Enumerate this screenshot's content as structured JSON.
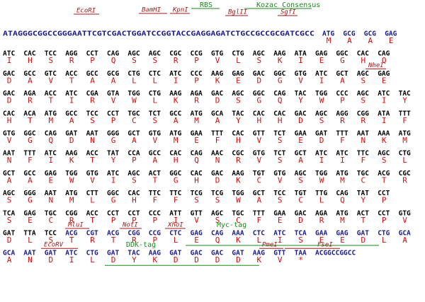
{
  "sequence": {
    "leader": "ATAGGGCGGCCGGGAATTCGTCGACTGGATCCGGTACCGAGGAGATCTGCCGCCGCGATCGCC",
    "rows": [
      {
        "codons": [
          "ATG",
          "GCG",
          "GCG",
          "GAG"
        ],
        "aa": [
          "M",
          "A",
          "A",
          "E"
        ]
      },
      {
        "codons": [
          "ATC",
          "CAC",
          "TCC",
          "AGG",
          "CCT",
          "CAG",
          "AGC",
          "AGC",
          "CGC",
          "CCG",
          "GTG",
          "CTG",
          "AGC",
          "AAG",
          "ATA",
          "GAG",
          "GGC",
          "CAC",
          "CAG"
        ],
        "aa": [
          "I",
          "H",
          "S",
          "R",
          "P",
          "Q",
          "S",
          "S",
          "R",
          "P",
          "V",
          "L",
          "S",
          "K",
          "I",
          "E",
          "G",
          "H",
          "Q"
        ]
      },
      {
        "codons": [
          "GAC",
          "GCC",
          "GTC",
          "ACC",
          "GCC",
          "GCG",
          "CTG",
          "CTC",
          "ATC",
          "CCC",
          "AAG",
          "GAG",
          "GAC",
          "GGC",
          "GTG",
          "ATC",
          "GCT",
          "AGC",
          "GAG"
        ],
        "aa": [
          "D",
          "A",
          "V",
          "T",
          "A",
          "A",
          "L",
          "L",
          "I",
          "P",
          "K",
          "E",
          "D",
          "G",
          "V",
          "I",
          "A",
          "S",
          "E"
        ]
      },
      {
        "codons": [
          "GAC",
          "AGA",
          "ACC",
          "ATC",
          "CGA",
          "GTA",
          "TGG",
          "CTG",
          "AAG",
          "AGA",
          "GAC",
          "AGC",
          "GGC",
          "CAG",
          "TAC",
          "TGG",
          "CCC",
          "AGC",
          "ATC",
          "TAC"
        ],
        "aa": [
          "D",
          "R",
          "T",
          "I",
          "R",
          "V",
          "W",
          "L",
          "K",
          "R",
          "D",
          "S",
          "G",
          "Q",
          "Y",
          "W",
          "P",
          "S",
          "I",
          "Y"
        ]
      },
      {
        "codons": [
          "CAC",
          "ACA",
          "ATG",
          "GCC",
          "TCC",
          "CCT",
          "TGC",
          "TCT",
          "GCC",
          "ATG",
          "GCA",
          "TAC",
          "CAC",
          "CAC",
          "GAC",
          "AGC",
          "AGG",
          "CGG",
          "ATA",
          "TTT"
        ],
        "aa": [
          "H",
          "T",
          "M",
          "A",
          "S",
          "P",
          "C",
          "S",
          "A",
          "M",
          "A",
          "Y",
          "H",
          "H",
          "D",
          "S",
          "R",
          "R",
          "I",
          "F"
        ]
      },
      {
        "codons": [
          "GTG",
          "GGC",
          "CAG",
          "GAT",
          "AAT",
          "GGG",
          "GCT",
          "GTG",
          "ATG",
          "GAA",
          "TTT",
          "CAC",
          "GTT",
          "TCT",
          "GAA",
          "GAT",
          "TTT",
          "AAT",
          "AAA",
          "ATG"
        ],
        "aa": [
          "V",
          "G",
          "Q",
          "D",
          "N",
          "G",
          "A",
          "V",
          "M",
          "E",
          "F",
          "H",
          "V",
          "S",
          "E",
          "D",
          "F",
          "N",
          "K",
          "M"
        ]
      },
      {
        "codons": [
          "AAT",
          "TTT",
          "ATC",
          "AAG",
          "ACC",
          "TAT",
          "CCA",
          "GCC",
          "CAC",
          "CAG",
          "AAC",
          "CGC",
          "GTG",
          "TCT",
          "GCT",
          "ATC",
          "ATC",
          "TTC",
          "AGC",
          "CTG"
        ],
        "aa": [
          "N",
          "F",
          "I",
          "K",
          "T",
          "Y",
          "P",
          "A",
          "H",
          "Q",
          "N",
          "R",
          "V",
          "S",
          "A",
          "I",
          "I",
          "F",
          "S",
          "L"
        ]
      },
      {
        "codons": [
          "GCT",
          "GCC",
          "GAG",
          "TGG",
          "GTG",
          "ATC",
          "AGC",
          "ACT",
          "GGC",
          "CAC",
          "GAC",
          "AAG",
          "TGT",
          "GTG",
          "AGC",
          "TGG",
          "ATG",
          "TGC",
          "ACG",
          "CGC"
        ],
        "aa": [
          "A",
          "A",
          "E",
          "W",
          "V",
          "I",
          "S",
          "T",
          "G",
          "H",
          "D",
          "K",
          "C",
          "V",
          "S",
          "W",
          "M",
          "C",
          "T",
          "R"
        ]
      },
      {
        "codons": [
          "AGC",
          "GGG",
          "AAT",
          "ATG",
          "CTT",
          "GGC",
          "CAC",
          "TTC",
          "TTC",
          "TCG",
          "TCG",
          "TGG",
          "GCT",
          "TCC",
          "TGT",
          "TTG",
          "CAG",
          "TAT",
          "CCT"
        ],
        "aa": [
          "S",
          "G",
          "N",
          "M",
          "L",
          "G",
          "H",
          "F",
          "F",
          "S",
          "S",
          "W",
          "A",
          "S",
          "C",
          "L",
          "Q",
          "Y",
          "P"
        ]
      },
      {
        "codons": [
          "TCA",
          "GAG",
          "TGC",
          "CGG",
          "ACC",
          "CCT",
          "CCT",
          "CCC",
          "ATT",
          "GTT",
          "AGC",
          "TGC",
          "TTT",
          "GAA",
          "GAC",
          "AGA",
          "ATG",
          "ACT",
          "CCT",
          "GTG"
        ],
        "aa": [
          "S",
          "E",
          "C",
          "R",
          "T",
          "P",
          "P",
          "P",
          "I",
          "V",
          "S",
          "C",
          "F",
          "E",
          "D",
          "R",
          "M",
          "T",
          "P",
          "V"
        ]
      },
      {
        "codons": [
          "GAT",
          "TTA",
          "TCC",
          "ACG",
          "CGT",
          "ACG",
          "CGG",
          "CCG",
          "CTC",
          "GAG",
          "CAG",
          "AAA",
          "CTC",
          "ATC",
          "TCA",
          "GAA",
          "GAG",
          "GAT",
          "CTG",
          "GCA"
        ],
        "aa": [
          "D",
          "L",
          "S",
          "T",
          "R",
          "T",
          "R",
          "P",
          "L",
          "E",
          "Q",
          "K",
          "L",
          "I",
          "S",
          "E",
          "E",
          "D",
          "L",
          "A"
        ]
      },
      {
        "codons": [
          "GCA",
          "AAT",
          "GAT",
          "ATC",
          "CTG",
          "GAT",
          "TAC",
          "AAG",
          "GAT",
          "GAC",
          "GAC",
          "GAT",
          "AAG",
          "GTT",
          "TAA",
          "ACGGCCGGCC"
        ],
        "aa": [
          "A",
          "N",
          "D",
          "I",
          "L",
          "D",
          "Y",
          "K",
          "D",
          "D",
          "D",
          "D",
          "K",
          "V",
          "*"
        ]
      }
    ]
  },
  "annotations": [
    "EcoRI",
    "BamHI",
    "KpnI",
    "RBS",
    "BglII",
    "Kozac Consensus",
    "SgfI",
    "NheI",
    "MluI",
    "NotI",
    "XhoI",
    "Myc-tag",
    "EcoRV",
    "DDK-tag",
    "PmeI",
    "FseI"
  ]
}
